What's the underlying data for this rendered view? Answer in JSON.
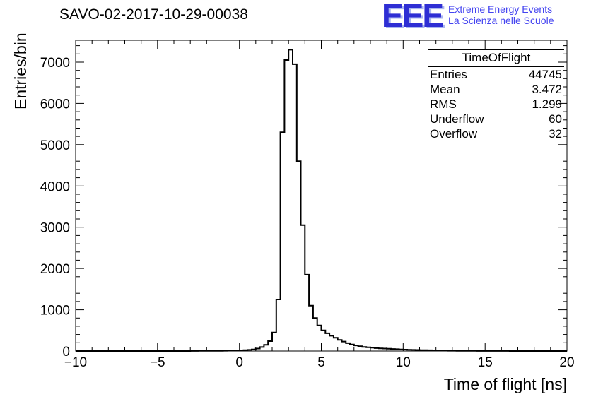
{
  "header": {
    "title": "SAVO-02-2017-10-29-00038",
    "logo": {
      "acronym": "EEE",
      "line1": "Extreme Energy Events",
      "line2": "La Scienza nelle Scuole",
      "accent_color": "#2e2ed4"
    }
  },
  "stats": {
    "title": "TimeOfFlight",
    "rows": [
      {
        "label": "Entries",
        "value": "44745"
      },
      {
        "label": "Mean",
        "value": "3.472"
      },
      {
        "label": "RMS",
        "value": "1.299"
      },
      {
        "label": "Underflow",
        "value": "60"
      },
      {
        "label": "Overflow",
        "value": "32"
      }
    ]
  },
  "chart_data": {
    "type": "bar",
    "subtype": "histogram-step",
    "title": "SAVO-02-2017-10-29-00038",
    "xlabel": "Time of flight [ns]",
    "ylabel": "Entries/bin",
    "xlim": [
      -10,
      20
    ],
    "ylim": [
      0,
      7530
    ],
    "x_major_ticks": [
      -10,
      -5,
      0,
      5,
      10,
      15,
      20
    ],
    "x_minor_step": 1,
    "y_major_ticks": [
      0,
      1000,
      2000,
      3000,
      4000,
      5000,
      6000,
      7000
    ],
    "y_minor_step": 200,
    "grid": false,
    "line_color": "#000000",
    "bin_start": -10,
    "bin_width": 0.25,
    "counts": [
      0,
      0,
      0,
      0,
      0,
      0,
      0,
      0,
      0,
      0,
      0,
      0,
      0,
      0,
      0,
      0,
      0,
      0,
      0,
      0,
      0,
      0,
      0,
      0,
      0,
      0,
      0,
      0,
      2,
      2,
      3,
      3,
      4,
      4,
      5,
      5,
      6,
      8,
      10,
      12,
      15,
      20,
      28,
      40,
      60,
      95,
      150,
      240,
      450,
      1250,
      5300,
      7050,
      7300,
      6950,
      4600,
      3050,
      1850,
      1100,
      800,
      620,
      500,
      430,
      370,
      320,
      270,
      230,
      190,
      160,
      135,
      115,
      100,
      90,
      80,
      70,
      65,
      60,
      55,
      50,
      45,
      40,
      35,
      30,
      28,
      25,
      22,
      20,
      18,
      15,
      12,
      10,
      8,
      7,
      6,
      5,
      4,
      4,
      3,
      3,
      2,
      2,
      2,
      1,
      1,
      1,
      1,
      1,
      0,
      0,
      0,
      0,
      0,
      0,
      0,
      0,
      0,
      0,
      0,
      0,
      0,
      0
    ],
    "annotations": {
      "stats_box": {
        "title": "TimeOfFlight",
        "entries": 44745,
        "mean": 3.472,
        "rms": 1.299,
        "underflow": 60,
        "overflow": 32
      }
    }
  }
}
